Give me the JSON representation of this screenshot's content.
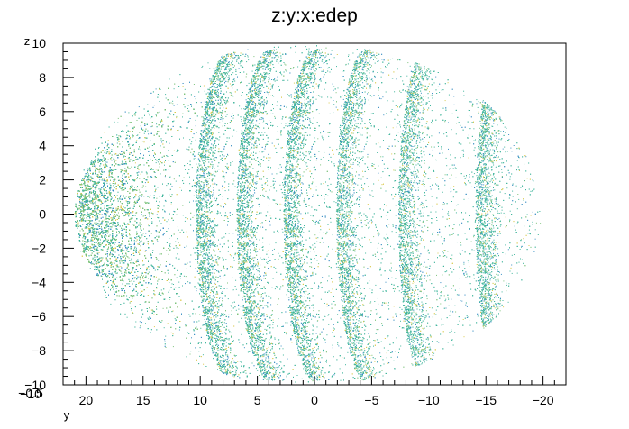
{
  "chart_data": {
    "type": "scatter",
    "title": "z:y:x:edep",
    "xlabel": "y",
    "ylabel": "z",
    "x_axis_reversed": true,
    "xlim": [
      22,
      -22
    ],
    "ylim": [
      -10,
      10
    ],
    "x_ticks": [
      20,
      15,
      10,
      5,
      0,
      -5,
      -10,
      -15,
      -20
    ],
    "x_tick_labels": [
      "20",
      "15",
      "10",
      "5",
      "0",
      "−5",
      "−10",
      "−15",
      "−20"
    ],
    "y_ticks": [
      10,
      8,
      6,
      4,
      2,
      0,
      -2,
      -4,
      -6,
      -8,
      -10
    ],
    "y_tick_labels": [
      "10",
      "8",
      "6",
      "4",
      "2",
      "0",
      "−2",
      "−4",
      "−6",
      "−8",
      "−10"
    ],
    "corner_labels": [
      "−10",
      "−0.5"
    ],
    "grid": false,
    "color_dimension": "edep",
    "colors": {
      "low": "#3a8fc4",
      "mid": "#3fb59c",
      "high": "#d9c94c",
      "dense": "#7cc27a"
    },
    "point_cloud": {
      "envelope_center_y": 0.6,
      "envelope_half_width_y": 20.4,
      "envelope_half_height_z": 9.9,
      "dense_band_y": [
        20.5,
        14.5
      ],
      "bands": [
        {
          "y_center": 8.7,
          "density": "high"
        },
        {
          "y_center": 5.2,
          "density": "high"
        },
        {
          "y_center": 1.2,
          "density": "high"
        },
        {
          "y_center": -3.3,
          "density": "medium"
        },
        {
          "y_center": -8.6,
          "density": "medium"
        },
        {
          "y_center": -15.2,
          "density": "medium"
        }
      ],
      "note_series": "single series of 3D points (x,y,z) colored by edep"
    }
  }
}
